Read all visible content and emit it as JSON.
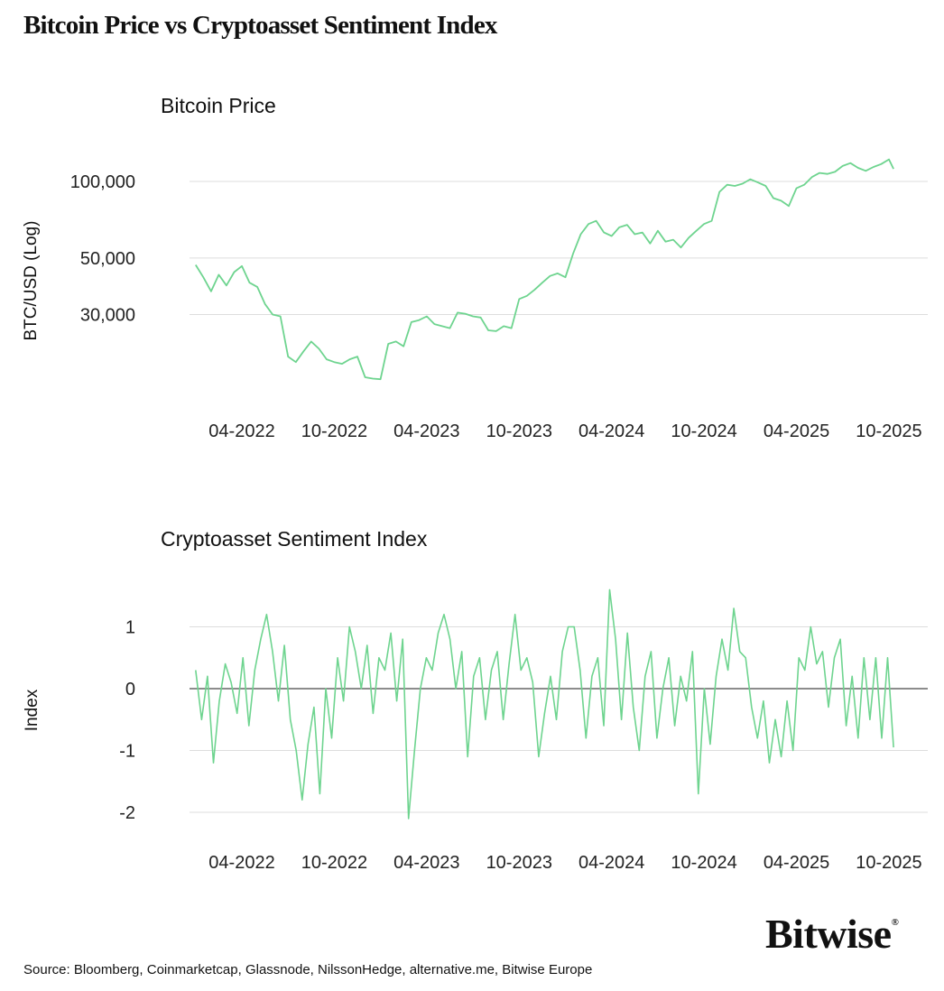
{
  "title": "Bitcoin Price vs Cryptoasset Sentiment Index",
  "source": "Source: Bloomberg, Coinmarketcap, Glassnode, NilssonHedge, alternative.me, Bitwise Europe",
  "logo": {
    "text": "Bitwise",
    "mark": "®"
  },
  "colors": {
    "line": "#6ed48f",
    "grid": "#dddddd",
    "zero": "#666666"
  },
  "chart_data": [
    {
      "type": "line",
      "title": "Bitcoin Price",
      "ylabel": "BTC/USD (Log)",
      "yscale": "log",
      "ylim": [
        14000,
        140000
      ],
      "yticks": [
        {
          "value": 100000,
          "label": "100,000"
        },
        {
          "value": 50000,
          "label": "50,000"
        },
        {
          "value": 30000,
          "label": "30,000"
        }
      ],
      "xticks": [
        {
          "month": 3,
          "label": "04-2022"
        },
        {
          "month": 9,
          "label": "10-2022"
        },
        {
          "month": 15,
          "label": "04-2023"
        },
        {
          "month": 21,
          "label": "10-2023"
        },
        {
          "month": 27,
          "label": "04-2024"
        },
        {
          "month": 33,
          "label": "10-2024"
        },
        {
          "month": 39,
          "label": "04-2025"
        },
        {
          "month": 45,
          "label": "10-2025"
        }
      ],
      "x_start": "2022-01",
      "x_unit": "months since 2022-01",
      "grid": true,
      "series": [
        {
          "name": "Bitcoin Price",
          "x": [
            0,
            0.5,
            1,
            1.5,
            2,
            2.5,
            3,
            3.5,
            4,
            4.5,
            5,
            5.5,
            6,
            6.5,
            7,
            7.5,
            8,
            8.5,
            9,
            9.5,
            10,
            10.5,
            11,
            11.5,
            12,
            12.5,
            13,
            13.5,
            14,
            14.5,
            15,
            15.5,
            16,
            16.5,
            17,
            17.5,
            18,
            18.5,
            19,
            19.5,
            20,
            20.5,
            21,
            21.5,
            22,
            22.5,
            23,
            23.5,
            24,
            24.5,
            25,
            25.5,
            26,
            26.5,
            27,
            27.5,
            28,
            28.5,
            29,
            29.5,
            30,
            30.5,
            31,
            31.5,
            32,
            32.5,
            33,
            33.5,
            34,
            34.5,
            35,
            35.5,
            36,
            36.5,
            37,
            37.5,
            38,
            38.5,
            39,
            39.5,
            40,
            40.5,
            41,
            41.5,
            42,
            42.5,
            43,
            43.5,
            44,
            44.5,
            45,
            45.3
          ],
          "values": [
            47000,
            42000,
            37000,
            43000,
            39000,
            44000,
            46500,
            40000,
            38500,
            33000,
            30000,
            29500,
            20500,
            19500,
            21500,
            23500,
            22000,
            20000,
            19500,
            19200,
            20000,
            20500,
            17000,
            16800,
            16700,
            23000,
            23500,
            22500,
            28000,
            28500,
            29500,
            27500,
            27000,
            26500,
            30500,
            30200,
            29500,
            29200,
            26000,
            25800,
            27000,
            26500,
            34500,
            35500,
            37500,
            40000,
            42500,
            43500,
            42000,
            52000,
            62000,
            68000,
            70000,
            63000,
            61000,
            66000,
            67500,
            62000,
            63000,
            57000,
            64000,
            58000,
            59000,
            55000,
            60000,
            64000,
            68000,
            70000,
            91000,
            97000,
            96000,
            98000,
            102000,
            99000,
            96000,
            86000,
            84000,
            80000,
            94000,
            97000,
            104000,
            108000,
            107000,
            109000,
            115000,
            118000,
            113000,
            110000,
            114000,
            117000,
            122000,
            112000
          ]
        }
      ]
    },
    {
      "type": "line",
      "title": "Cryptoasset Sentiment Index",
      "ylabel": "Index",
      "ylim": [
        -2.2,
        1.7
      ],
      "yticks": [
        {
          "value": 1,
          "label": "1"
        },
        {
          "value": 0,
          "label": "0"
        },
        {
          "value": -1,
          "label": "-1"
        },
        {
          "value": -2,
          "label": "-2"
        }
      ],
      "xticks": [
        {
          "month": 3,
          "label": "04-2022"
        },
        {
          "month": 9,
          "label": "10-2022"
        },
        {
          "month": 15,
          "label": "04-2023"
        },
        {
          "month": 21,
          "label": "10-2023"
        },
        {
          "month": 27,
          "label": "04-2024"
        },
        {
          "month": 33,
          "label": "10-2024"
        },
        {
          "month": 39,
          "label": "04-2025"
        },
        {
          "month": 45,
          "label": "10-2025"
        }
      ],
      "x_start": "2022-01",
      "x_end_month": 45.3,
      "grid": true,
      "series": [
        {
          "name": "Cryptoasset Sentiment Index",
          "values": [
            0.3,
            -0.5,
            0.2,
            -1.2,
            -0.2,
            0.4,
            0.1,
            -0.4,
            0.5,
            -0.6,
            0.3,
            0.8,
            1.2,
            0.6,
            -0.2,
            0.7,
            -0.5,
            -1.0,
            -1.8,
            -0.9,
            -0.3,
            -1.7,
            0.0,
            -0.8,
            0.5,
            -0.2,
            1.0,
            0.6,
            0.0,
            0.7,
            -0.4,
            0.5,
            0.3,
            0.9,
            -0.2,
            0.8,
            -2.1,
            -1.0,
            0.0,
            0.5,
            0.3,
            0.9,
            1.2,
            0.8,
            0.0,
            0.6,
            -1.1,
            0.2,
            0.5,
            -0.5,
            0.3,
            0.6,
            -0.5,
            0.4,
            1.2,
            0.3,
            0.5,
            0.1,
            -1.1,
            -0.4,
            0.2,
            -0.5,
            0.6,
            1.0,
            1.0,
            0.3,
            -0.8,
            0.2,
            0.5,
            -0.6,
            1.6,
            0.8,
            -0.5,
            0.9,
            -0.3,
            -1.0,
            0.2,
            0.6,
            -0.8,
            0.0,
            0.5,
            -0.6,
            0.2,
            -0.2,
            0.6,
            -1.7,
            0.0,
            -0.9,
            0.2,
            0.8,
            0.3,
            1.3,
            0.6,
            0.5,
            -0.3,
            -0.8,
            -0.2,
            -1.2,
            -0.5,
            -1.1,
            -0.2,
            -1.0,
            0.5,
            0.3,
            1.0,
            0.4,
            0.6,
            -0.3,
            0.5,
            0.8,
            -0.6,
            0.2,
            -0.8,
            0.5,
            -0.5,
            0.5,
            -0.8,
            0.5,
            -0.95
          ]
        }
      ]
    }
  ]
}
